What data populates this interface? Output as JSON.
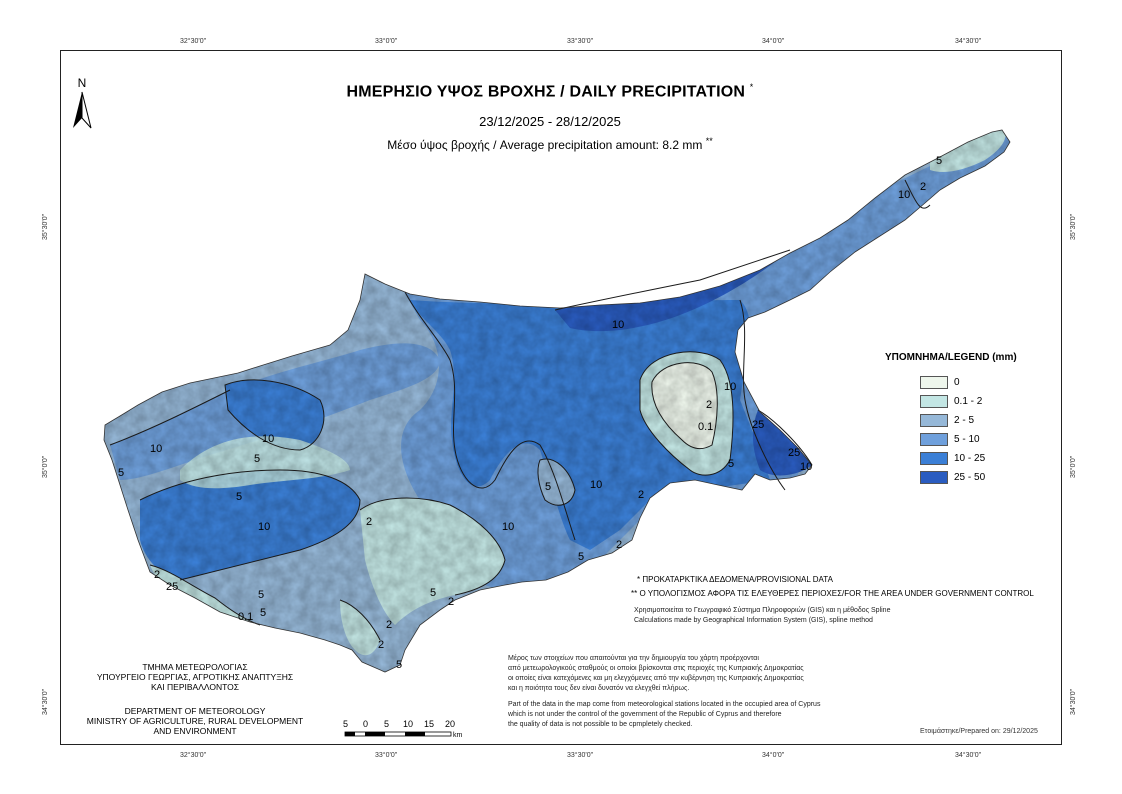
{
  "map": {
    "title": "ΗΜΕΡΗΣΙΟ ΥΨΟΣ ΒΡΟΧΗΣ / DAILY PRECIPITATION",
    "title_mark": "*",
    "dates": "23/12/2025 - 28/12/2025",
    "average": "Μέσο ύψος βροχής / Average precipitation amount: 8.2 mm",
    "average_mark": "**",
    "north_label": "N"
  },
  "graticule": {
    "top": [
      "32°30'0\"",
      "33°0'0\"",
      "33°30'0\"",
      "34°0'0\"",
      "34°30'0\""
    ],
    "bottom": [
      "32°30'0\"",
      "33°0'0\"",
      "33°30'0\"",
      "34°0'0\"",
      "34°30'0\""
    ],
    "left": [
      "35°30'0\"",
      "35°0'0\"",
      "34°30'0\""
    ],
    "right": [
      "35°30'0\"",
      "35°0'0\"",
      "34°30'0\""
    ]
  },
  "legend": {
    "title": "ΥΠΟΜΝΗΜΑ/LEGEND (mm)",
    "classes": [
      {
        "label": "0",
        "color": "#eef6ec"
      },
      {
        "label": "0.1 - 2",
        "color": "#c3e6e4"
      },
      {
        "label": "2 - 5",
        "color": "#96b8d8"
      },
      {
        "label": "5 - 10",
        "color": "#6fa0dc"
      },
      {
        "label": "10 - 25",
        "color": "#3b7fd6"
      },
      {
        "label": "25 - 50",
        "color": "#2a5cc0"
      }
    ]
  },
  "contour_labels": [
    "10",
    "5",
    "5",
    "10",
    "10",
    "5",
    "2",
    "10",
    "5",
    "2",
    "5",
    "2",
    "10",
    "5",
    "0.1",
    "2",
    "10",
    "25",
    "25",
    "10",
    "5",
    "2",
    "5",
    "10",
    "2",
    "5",
    "0.1",
    "2",
    "25",
    "5",
    "2",
    "10",
    "5",
    "2"
  ],
  "notes": {
    "provisional": "* ΠΡΟΚΑΤΑΡΚΤΙΚΑ ΔΕΔΟΜΕΝΑ/PROVISIONAL DATA",
    "calc_area": "** Ο ΥΠΟΛΟΓΙΣΜΟΣ ΑΦΟΡΑ ΤΙΣ ΕΛΕΥΘΕΡΕΣ ΠΕΡΙΟΧΕΣ/FOR THE AREA UNDER GOVERNMENT CONTROL",
    "gis_gr": "Χρησιμοποιείται το Γεωγραφικό Σύστημα Πληροφοριών (GIS) και η μέθοδος Spline",
    "gis_en": "Calculations made by Geographical Information System (GIS), spline method",
    "data_gr_1": "Μέρος των στοιχείων που απαιτούνται για την δημιουργία του χάρτη προέρχονται",
    "data_gr_2": "από μετεωρολογικούς σταθμούς οι οποίοι βρίσκονται στις περιοχές της Κυπριακής Δημοκρατίας",
    "data_gr_3": "οι οποίες είναι κατεχόμενες και μη ελεγχόμενες από την κυβέρνηση της Κυπριακής Δημοκρατίας",
    "data_gr_4": "και η ποιότητα τους δεν είναι δυνατόν να ελεγχθεί πλήρως.",
    "data_en_1": "Part of the data in the map come from meteorological stations located in the occupied area of Cyprus",
    "data_en_2": "which is not under the control of the government of the Republic of Cyprus and therefore",
    "data_en_3": "the quality of data is not possible to be cpmpletely checked.",
    "prepared": "Ετοιμάστηκε/Prepared on: 29/12/2025"
  },
  "department": {
    "gr_1": "ΤΜΗΜΑ ΜΕΤΕΩΡΟΛΟΓΙΑΣ",
    "gr_2": "ΥΠΟΥΡΓΕΙΟ ΓΕΩΡΓΙΑΣ, ΑΓΡΟΤΙΚΗΣ ΑΝΑΠΤΥΞΗΣ",
    "gr_3": "ΚΑΙ ΠΕΡΙΒΑΛΛΟΝΤΟΣ",
    "en_1": "DEPARTMENT OF METEOROLOGY",
    "en_2": "MINISTRY OF AGRICULTURE, RURAL DEVELOPMENT",
    "en_3": "AND ENVIRONMENT"
  },
  "scale_bar": {
    "labels": [
      "5",
      "0",
      "5",
      "10",
      "15",
      "20"
    ],
    "unit": "km"
  }
}
